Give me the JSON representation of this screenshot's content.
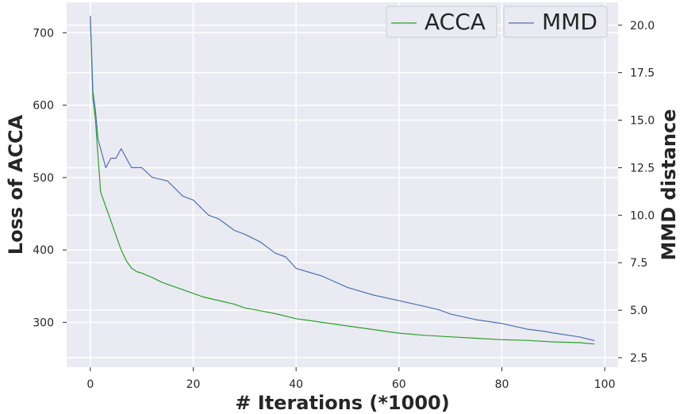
{
  "chart_data": {
    "type": "line",
    "xlabel": "# Iterations (*1000)",
    "ylabel_left": "Loss of ACCA",
    "ylabel_right": "MMD distance",
    "x_ticks": [
      0,
      20,
      40,
      60,
      80,
      100
    ],
    "y_left_ticks": [
      300,
      400,
      500,
      600,
      700
    ],
    "y_right_ticks": [
      "2.5",
      "5.0",
      "7.5",
      "10.0",
      "12.5",
      "15.0",
      "17.5",
      "20.0"
    ],
    "xlim": [
      -4.6,
      102.6
    ],
    "ylim_left": [
      238,
      742
    ],
    "ylim_right": [
      2.0,
      21.2
    ],
    "grid": true,
    "legend_position": "top-right",
    "series": [
      {
        "name": "ACCA",
        "color": "#2ca02c",
        "axis": "left",
        "x": [
          0,
          0.5,
          1,
          1.5,
          2,
          3,
          4,
          5,
          6,
          7,
          8,
          9,
          10,
          12,
          14,
          16,
          18,
          20,
          22,
          25,
          28,
          30,
          33,
          36,
          40,
          45,
          50,
          55,
          60,
          65,
          70,
          75,
          80,
          85,
          90,
          95,
          98
        ],
        "values": [
          720,
          610,
          580,
          530,
          480,
          460,
          440,
          420,
          400,
          385,
          375,
          370,
          368,
          362,
          355,
          350,
          345,
          340,
          335,
          330,
          325,
          320,
          316,
          312,
          305,
          300,
          295,
          290,
          285,
          282,
          280,
          278,
          276,
          275,
          273,
          272,
          270
        ]
      },
      {
        "name": "MMD",
        "color": "#4c72b0",
        "axis": "right",
        "x": [
          0,
          0.5,
          1,
          1.5,
          2,
          3,
          4,
          5,
          6,
          7,
          8,
          10,
          12,
          15,
          18,
          20,
          23,
          25,
          28,
          30,
          33,
          36,
          38,
          40,
          45,
          50,
          55,
          60,
          65,
          68,
          70,
          75,
          80,
          85,
          88,
          90,
          95,
          98
        ],
        "values": [
          20.5,
          16.5,
          15.5,
          14.0,
          13.5,
          12.5,
          13.0,
          13.0,
          13.5,
          13.0,
          12.5,
          12.5,
          12.0,
          11.8,
          11.0,
          10.8,
          10.0,
          9.8,
          9.2,
          9.0,
          8.6,
          8.0,
          7.8,
          7.2,
          6.8,
          6.2,
          5.8,
          5.5,
          5.2,
          5.0,
          4.8,
          4.5,
          4.3,
          4.0,
          3.9,
          3.8,
          3.6,
          3.4
        ]
      }
    ]
  }
}
